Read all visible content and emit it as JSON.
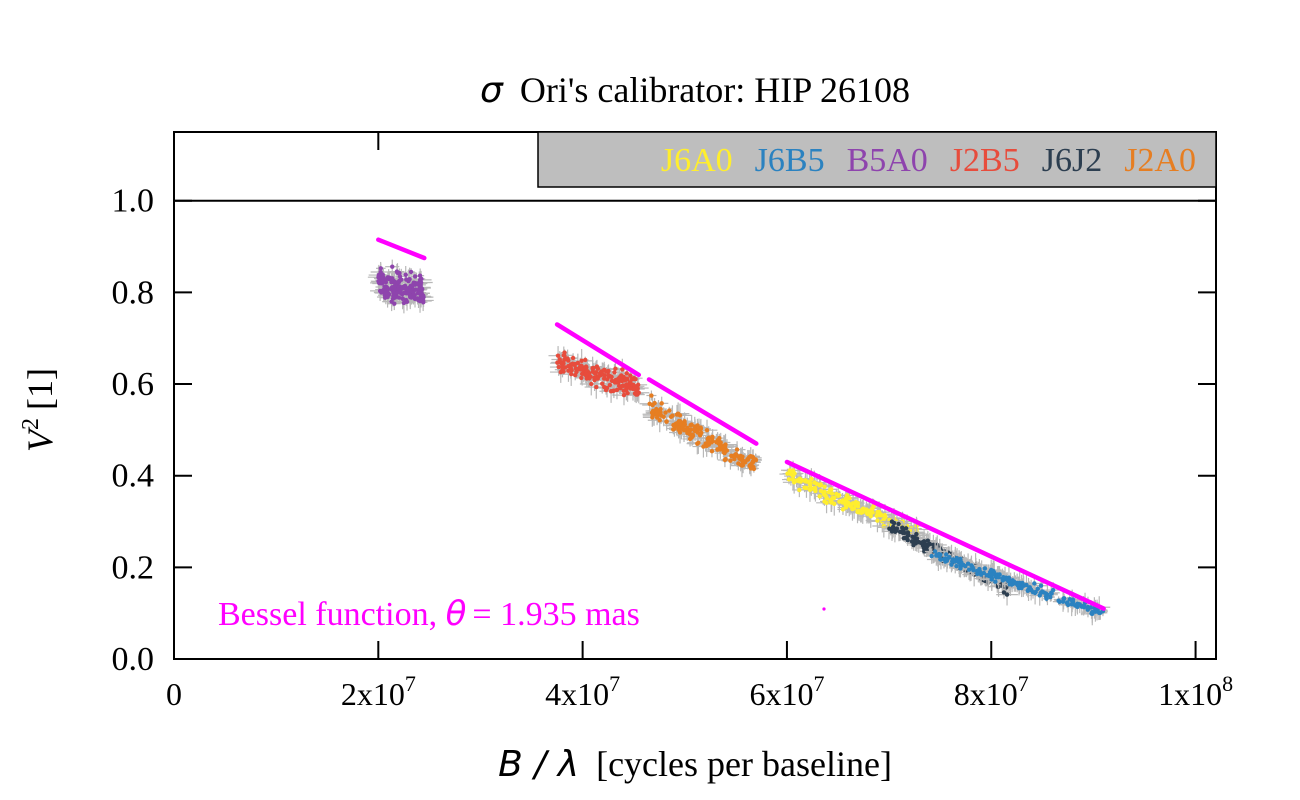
{
  "chart_data": {
    "type": "scatter",
    "title_prefix": "σ",
    "title": "Ori's calibrator: HIP 26108",
    "xlabel_var": "B / λ",
    "xlabel": "[cycles per baseline]",
    "ylabel_var": "V",
    "ylabel_sup": "2",
    "ylabel": "[1]",
    "xlim": [
      0,
      102000000
    ],
    "ylim": [
      0,
      1.15
    ],
    "x_ticks": [
      {
        "value": 0,
        "base": "0",
        "exp": ""
      },
      {
        "value": 20000000,
        "base": "2x10",
        "exp": "7"
      },
      {
        "value": 40000000,
        "base": "4x10",
        "exp": "7"
      },
      {
        "value": 60000000,
        "base": "6x10",
        "exp": "7"
      },
      {
        "value": 80000000,
        "base": "8x10",
        "exp": "7"
      },
      {
        "value": 100000000,
        "base": "1x10",
        "exp": "8"
      }
    ],
    "y_ticks": [
      {
        "value": 0.0,
        "label": "0.0"
      },
      {
        "value": 0.2,
        "label": "0.2"
      },
      {
        "value": 0.4,
        "label": "0.4"
      },
      {
        "value": 0.6,
        "label": "0.6"
      },
      {
        "value": 0.8,
        "label": "0.8"
      },
      {
        "value": 1.0,
        "label": "1.0"
      }
    ],
    "reference_line": 1.0,
    "legend": {
      "position": "top-right",
      "background": "#bebebe"
    },
    "series": [
      {
        "name": "J6A0",
        "color": "#ffee2e",
        "x_range": [
          60000000,
          73000000
        ],
        "v2_range": [
          0.4,
          0.27
        ],
        "spread": 0.025
      },
      {
        "name": "J6B5",
        "color": "#2b82c0",
        "x_range": [
          74000000,
          91000000
        ],
        "v2_range": [
          0.23,
          0.1
        ],
        "spread": 0.015
      },
      {
        "name": "B5A0",
        "color": "#8e44ad",
        "x_range": [
          20000000,
          24500000
        ],
        "v2_range": [
          0.82,
          0.8
        ],
        "spread": 0.05
      },
      {
        "name": "J2B5",
        "color": "#e74c3c",
        "x_range": [
          37500000,
          45500000
        ],
        "v2_range": [
          0.65,
          0.59
        ],
        "spread": 0.035
      },
      {
        "name": "J6J2",
        "color": "#2c3e50",
        "x_range": [
          70000000,
          82000000
        ],
        "v2_range": [
          0.29,
          0.15
        ],
        "spread": 0.02
      },
      {
        "name": "J2A0",
        "color": "#e67e22",
        "x_range": [
          46500000,
          57000000
        ],
        "v2_range": [
          0.55,
          0.42
        ],
        "spread": 0.03
      }
    ],
    "model": {
      "name": "Bessel function",
      "theta_symbol": "θ",
      "theta_text": "= 1.935 mas",
      "color": "#ff00ff",
      "segments": [
        {
          "x": [
            20000000,
            24500000
          ],
          "y": [
            0.915,
            0.875
          ]
        },
        {
          "x": [
            37500000,
            45500000
          ],
          "y": [
            0.73,
            0.62
          ]
        },
        {
          "x": [
            46500000,
            57000000
          ],
          "y": [
            0.61,
            0.47
          ]
        },
        {
          "x": [
            60000000,
            91000000
          ],
          "y": [
            0.43,
            0.11
          ]
        }
      ]
    }
  }
}
